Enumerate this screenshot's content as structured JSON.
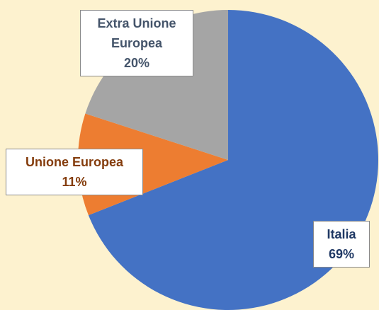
{
  "chart_data": {
    "type": "pie",
    "categories": [
      "Italia",
      "Unione Europea",
      "Extra Unione Europea"
    ],
    "values": [
      69,
      11,
      20
    ],
    "value_labels": [
      "69%",
      "11%",
      "20%"
    ],
    "colors": [
      "#4472c4",
      "#ed7d31",
      "#a5a5a5"
    ]
  }
}
